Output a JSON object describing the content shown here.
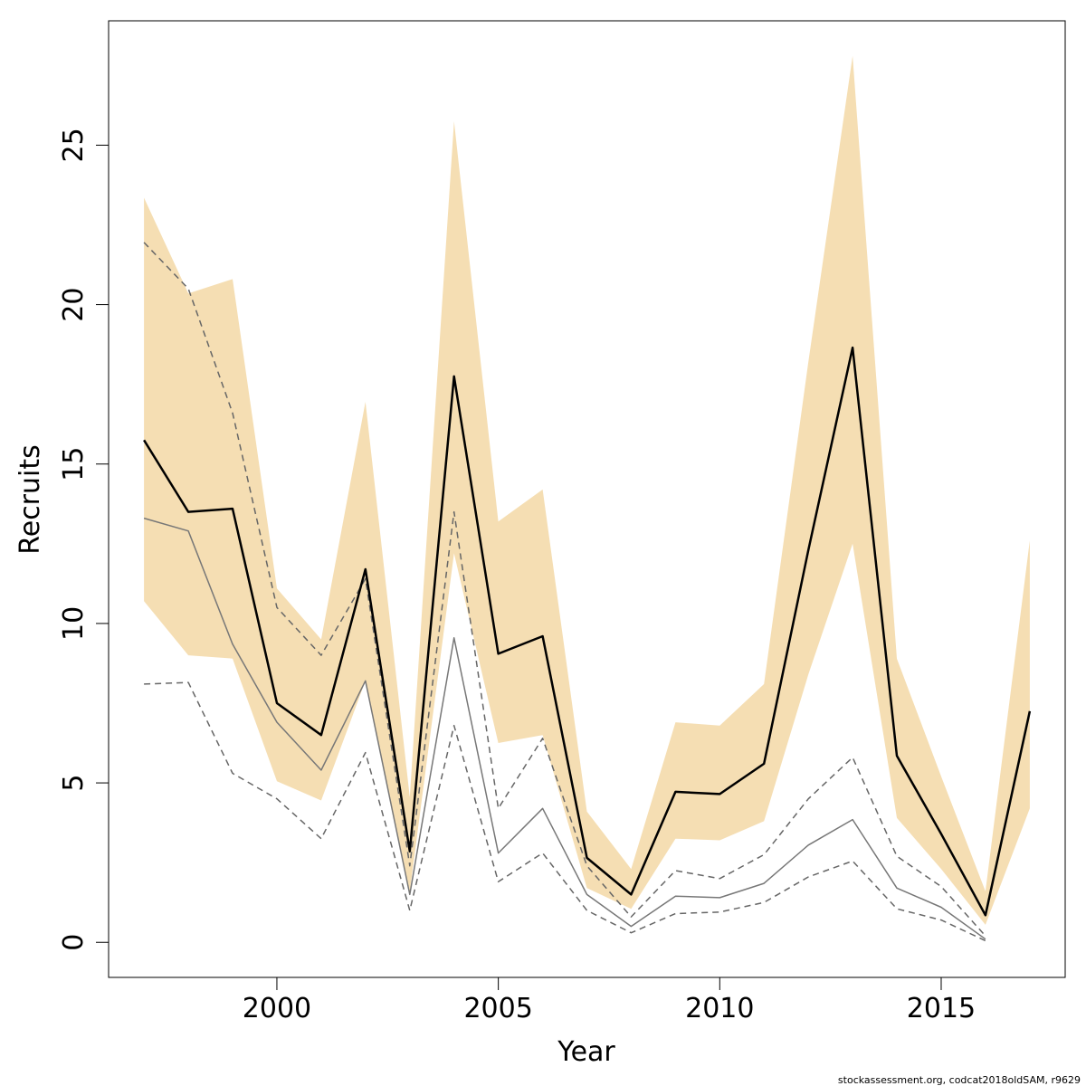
{
  "chart_data": {
    "type": "line",
    "xlabel": "Year",
    "ylabel": "Recruits",
    "xlim": [
      1996.2,
      2017.8
    ],
    "ylim": [
      -1.1,
      28.9
    ],
    "x_ticks": [
      2000,
      2005,
      2010,
      2015
    ],
    "y_ticks": [
      0,
      5,
      10,
      15,
      20,
      25
    ],
    "grid": false,
    "x": [
      1997,
      1998,
      1999,
      2000,
      2001,
      2002,
      2003,
      2004,
      2005,
      2006,
      2007,
      2008,
      2009,
      2010,
      2011,
      2012,
      2013,
      2014,
      2015,
      2016,
      2017
    ],
    "band": {
      "color": "#f5deb3",
      "lower": [
        10.7,
        9.0,
        8.9,
        5.05,
        4.45,
        8.2,
        1.6,
        12.2,
        6.25,
        6.5,
        1.7,
        1.05,
        3.25,
        3.2,
        3.8,
        8.4,
        12.5,
        3.9,
        2.3,
        0.55,
        4.2
      ],
      "upper": [
        23.35,
        20.35,
        20.8,
        11.1,
        9.5,
        16.95,
        4.55,
        25.75,
        13.2,
        14.2,
        4.1,
        2.3,
        6.9,
        6.8,
        8.1,
        18.2,
        27.8,
        8.9,
        5.2,
        1.6,
        12.6
      ]
    },
    "series": [
      {
        "role": "estimate",
        "color": "#000000",
        "values": [
          15.75,
          13.5,
          13.6,
          7.5,
          6.5,
          11.7,
          2.85,
          17.75,
          9.05,
          9.6,
          2.65,
          1.5,
          4.72,
          4.65,
          5.6,
          12.3,
          18.65,
          5.85,
          3.4,
          0.85,
          7.25
        ]
      },
      {
        "role": "comparison",
        "color": "#777777",
        "values": [
          13.3,
          12.9,
          9.35,
          6.9,
          5.4,
          8.2,
          1.5,
          9.55,
          2.8,
          4.2,
          1.5,
          0.5,
          1.45,
          1.4,
          1.85,
          3.05,
          3.85,
          1.7,
          1.1,
          0.1,
          null
        ]
      },
      {
        "role": "comparison-upper",
        "color": "#666666",
        "dashed": true,
        "values": [
          21.95,
          20.5,
          16.6,
          10.5,
          9.0,
          11.4,
          2.4,
          13.5,
          4.2,
          6.4,
          2.4,
          0.8,
          2.25,
          2.0,
          2.75,
          4.5,
          5.8,
          2.7,
          1.75,
          0.2,
          null
        ]
      },
      {
        "role": "comparison-lower",
        "color": "#666666",
        "dashed": true,
        "values": [
          8.1,
          8.15,
          5.3,
          4.5,
          3.25,
          5.95,
          1.0,
          6.8,
          1.9,
          2.8,
          1.0,
          0.3,
          0.9,
          0.95,
          1.25,
          2.05,
          2.55,
          1.05,
          0.7,
          0.05,
          null
        ]
      }
    ]
  },
  "footer": {
    "credit": "stockassessment.org, codcat2018oldSAM, r9629"
  }
}
